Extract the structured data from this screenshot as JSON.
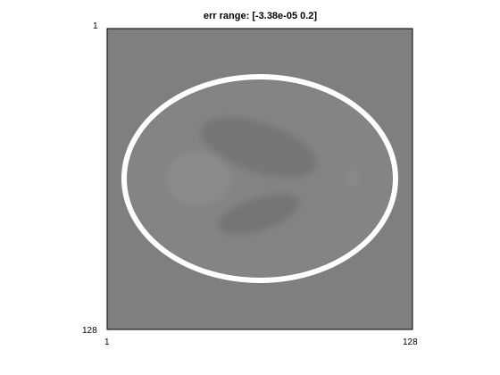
{
  "figure": {
    "title": "err range: [-3.38e-05 0.2]",
    "x_ticks": [
      "1",
      "128"
    ],
    "y_ticks": [
      "1",
      "128"
    ]
  },
  "image": {
    "colormap": "gray",
    "background_color": "#808080",
    "ellipse_color": "#ffffff"
  }
}
